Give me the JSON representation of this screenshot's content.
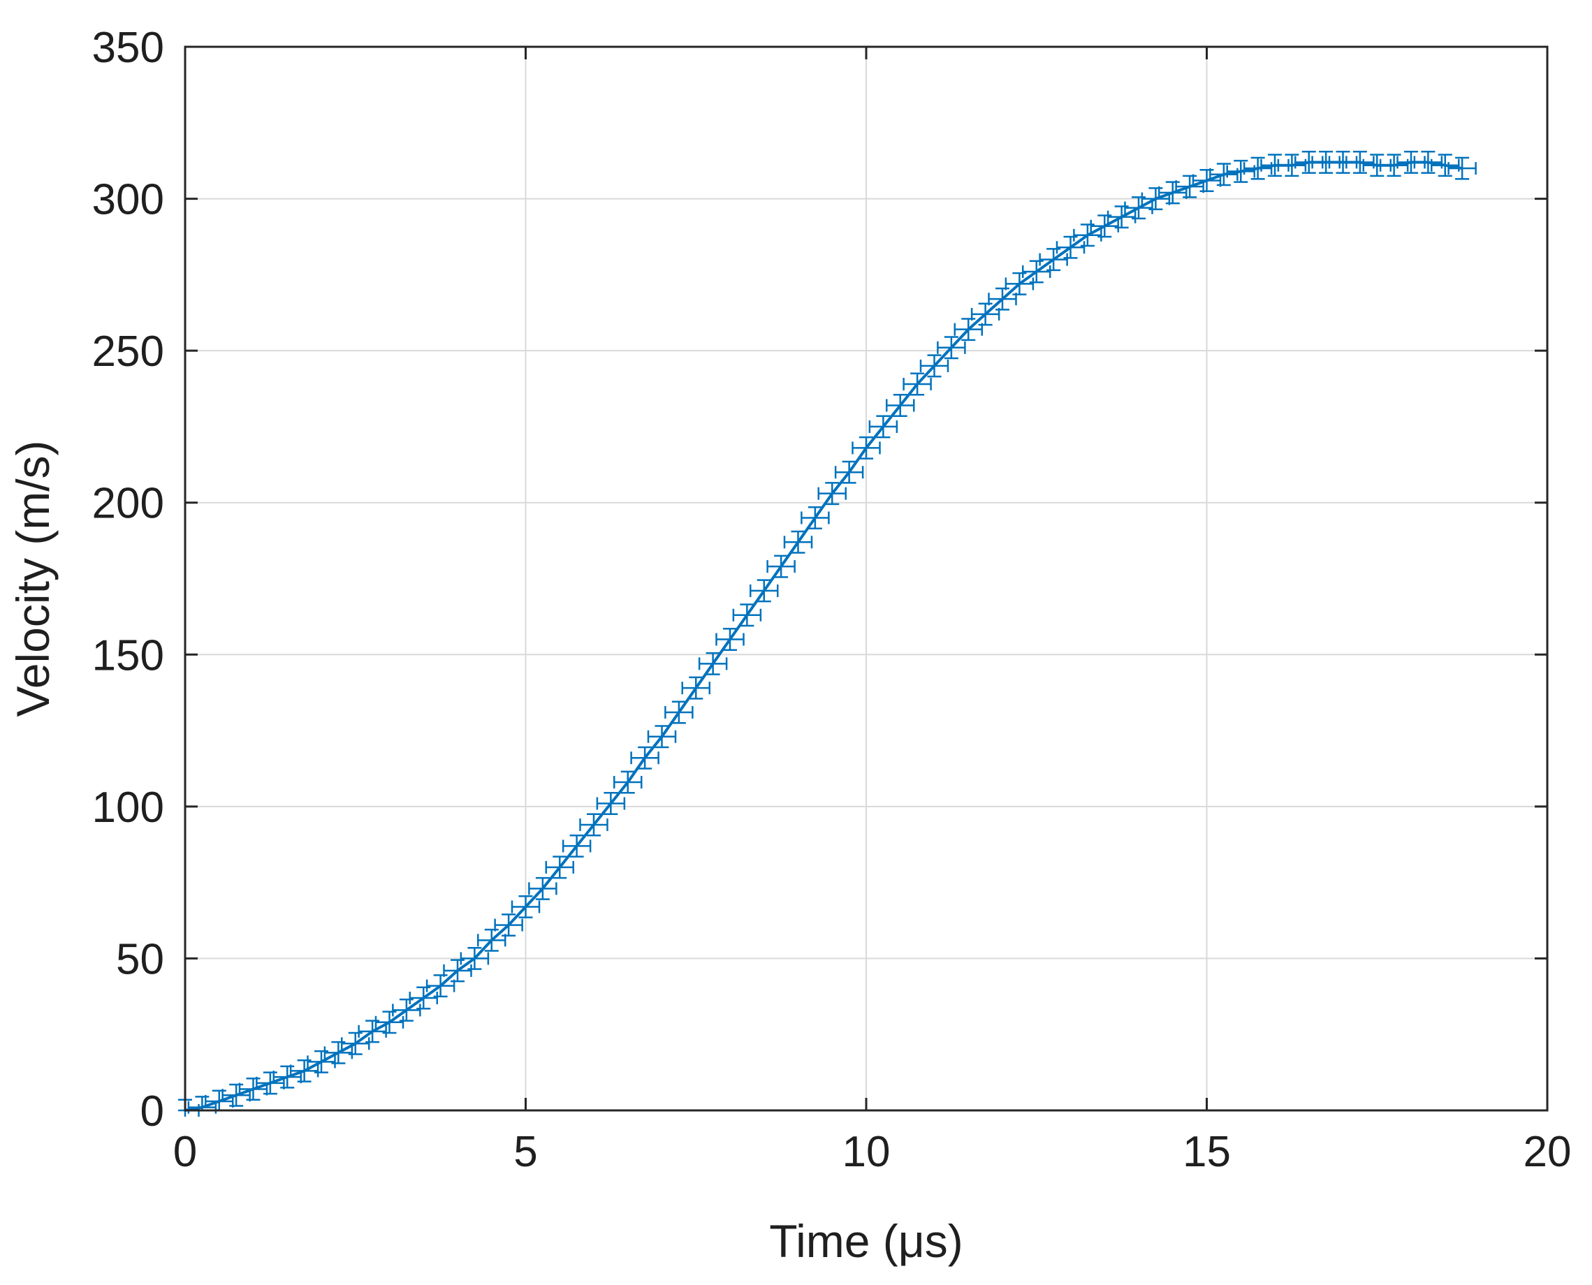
{
  "chart_data": {
    "type": "line",
    "xlabel": "Time (μs)",
    "ylabel": "Velocity (m/s)",
    "xlim": [
      0,
      20
    ],
    "ylim": [
      0,
      350
    ],
    "xticks": [
      "0",
      "5",
      "10",
      "15",
      "20"
    ],
    "yticks": [
      "0",
      "50",
      "100",
      "150",
      "200",
      "250",
      "300",
      "350"
    ],
    "grid": true,
    "legend": "none",
    "colors": {
      "series": "#0072BD",
      "grid": "#d9d9d9",
      "axes": "#262626"
    },
    "error_bars": {
      "half_width_x": 0.2,
      "half_height_y": 3.5
    },
    "series": [
      {
        "x": [
          0.0,
          0.25,
          0.5,
          0.75,
          1.0,
          1.25,
          1.5,
          1.75,
          2.0,
          2.25,
          2.5,
          2.75,
          3.0,
          3.25,
          3.5,
          3.75,
          4.0,
          4.25,
          4.5,
          4.75,
          5.0,
          5.25,
          5.5,
          5.75,
          6.0,
          6.25,
          6.5,
          6.75,
          7.0,
          7.25,
          7.5,
          7.75,
          8.0,
          8.25,
          8.5,
          8.75,
          9.0,
          9.25,
          9.5,
          9.75,
          10.0,
          10.25,
          10.5,
          10.75,
          11.0,
          11.25,
          11.5,
          11.75,
          12.0,
          12.25,
          12.5,
          12.75,
          13.0,
          13.25,
          13.5,
          13.75,
          14.0,
          14.25,
          14.5,
          14.75,
          15.0,
          15.25,
          15.5,
          15.75,
          16.0,
          16.25,
          16.5,
          16.75,
          17.0,
          17.25,
          17.5,
          17.75,
          18.0,
          18.25,
          18.5,
          18.75
        ],
        "y": [
          0,
          1,
          3,
          5,
          7,
          9,
          11,
          13,
          16,
          19,
          22,
          26,
          29,
          33,
          37,
          41,
          46,
          50,
          56,
          61,
          67,
          73,
          80,
          87,
          94,
          101,
          108,
          116,
          123,
          131,
          139,
          147,
          155,
          163,
          171,
          179,
          187,
          195,
          203,
          210,
          218,
          225,
          232,
          239,
          245,
          251,
          257,
          262,
          267,
          272,
          276,
          280,
          284,
          288,
          291,
          294,
          297,
          300,
          302,
          304,
          306,
          308,
          309,
          310,
          311,
          311,
          312,
          312,
          312,
          312,
          311,
          311,
          312,
          312,
          311,
          310
        ]
      }
    ]
  }
}
